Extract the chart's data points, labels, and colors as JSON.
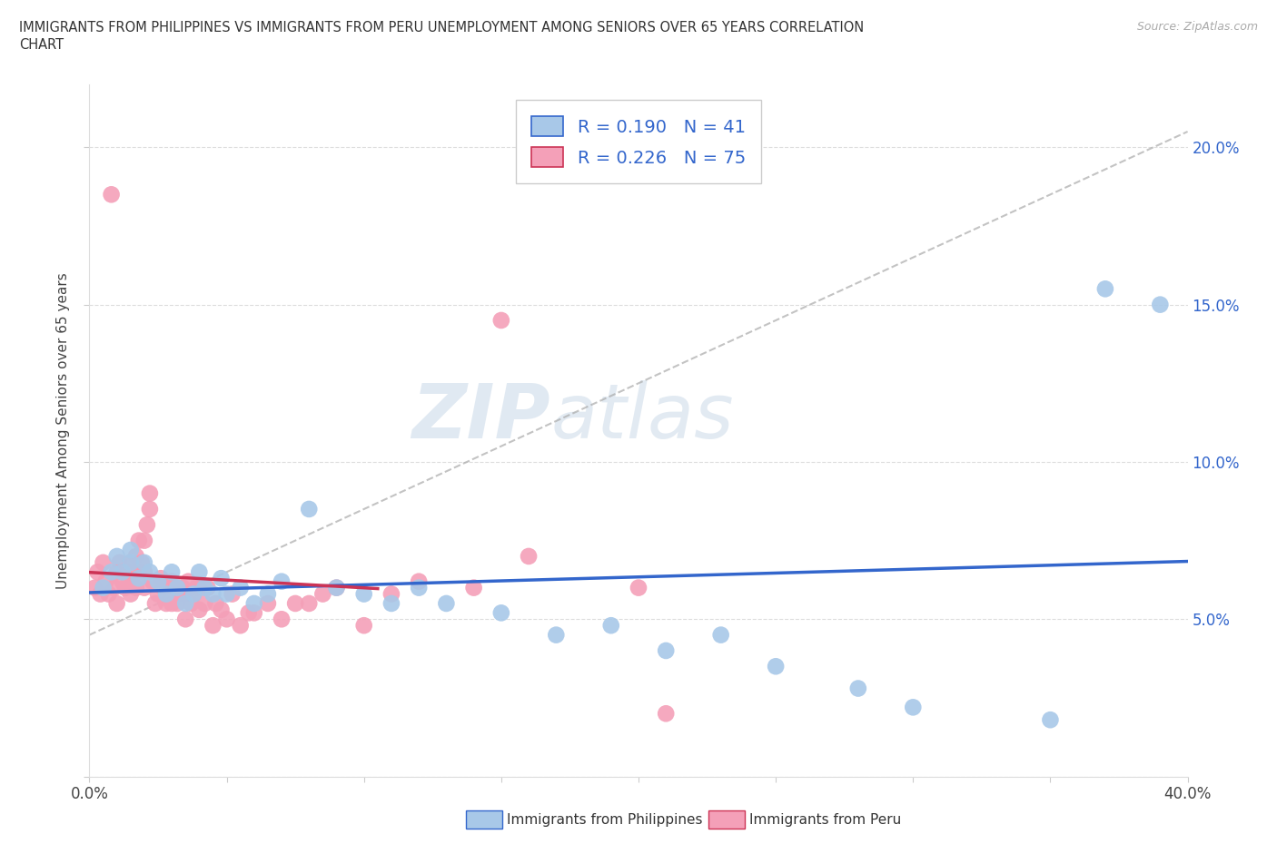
{
  "title_line1": "IMMIGRANTS FROM PHILIPPINES VS IMMIGRANTS FROM PERU UNEMPLOYMENT AMONG SENIORS OVER 65 YEARS CORRELATION",
  "title_line2": "CHART",
  "source": "Source: ZipAtlas.com",
  "ylabel": "Unemployment Among Seniors over 65 years",
  "xlim": [
    0.0,
    0.4
  ],
  "ylim": [
    0.0,
    0.22
  ],
  "yticks": [
    0.0,
    0.05,
    0.1,
    0.15,
    0.2
  ],
  "ytick_labels": [
    "",
    "5.0%",
    "10.0%",
    "15.0%",
    "20.0%"
  ],
  "xticks": [
    0.0,
    0.05,
    0.1,
    0.15,
    0.2,
    0.25,
    0.3,
    0.35,
    0.4
  ],
  "r_philippines": 0.19,
  "n_philippines": 41,
  "r_peru": 0.226,
  "n_peru": 75,
  "color_philippines": "#a8c8e8",
  "color_peru": "#f4a0b8",
  "line_color_philippines": "#3366cc",
  "line_color_peru": "#cc3355",
  "watermark_zip": "ZIP",
  "watermark_atlas": "atlas",
  "philippines_x": [
    0.005,
    0.008,
    0.01,
    0.012,
    0.015,
    0.015,
    0.018,
    0.02,
    0.022,
    0.025,
    0.028,
    0.03,
    0.032,
    0.035,
    0.038,
    0.04,
    0.042,
    0.045,
    0.048,
    0.05,
    0.055,
    0.06,
    0.065,
    0.07,
    0.08,
    0.09,
    0.1,
    0.11,
    0.12,
    0.13,
    0.15,
    0.17,
    0.19,
    0.21,
    0.23,
    0.25,
    0.28,
    0.3,
    0.35,
    0.37,
    0.39
  ],
  "philippines_y": [
    0.06,
    0.065,
    0.07,
    0.065,
    0.068,
    0.072,
    0.063,
    0.068,
    0.065,
    0.062,
    0.058,
    0.065,
    0.06,
    0.055,
    0.058,
    0.065,
    0.06,
    0.058,
    0.063,
    0.058,
    0.06,
    0.055,
    0.058,
    0.062,
    0.085,
    0.06,
    0.058,
    0.055,
    0.06,
    0.055,
    0.052,
    0.045,
    0.048,
    0.04,
    0.045,
    0.035,
    0.028,
    0.022,
    0.018,
    0.155,
    0.15
  ],
  "peru_x": [
    0.002,
    0.003,
    0.004,
    0.005,
    0.006,
    0.007,
    0.008,
    0.009,
    0.01,
    0.01,
    0.011,
    0.012,
    0.012,
    0.013,
    0.014,
    0.015,
    0.015,
    0.015,
    0.016,
    0.017,
    0.017,
    0.018,
    0.018,
    0.019,
    0.02,
    0.02,
    0.02,
    0.021,
    0.022,
    0.022,
    0.023,
    0.024,
    0.025,
    0.026,
    0.027,
    0.028,
    0.029,
    0.03,
    0.03,
    0.031,
    0.032,
    0.033,
    0.034,
    0.035,
    0.035,
    0.036,
    0.037,
    0.038,
    0.039,
    0.04,
    0.04,
    0.042,
    0.043,
    0.045,
    0.046,
    0.048,
    0.05,
    0.052,
    0.055,
    0.058,
    0.06,
    0.065,
    0.07,
    0.075,
    0.08,
    0.085,
    0.09,
    0.1,
    0.11,
    0.12,
    0.14,
    0.15,
    0.16,
    0.2,
    0.21
  ],
  "peru_y": [
    0.06,
    0.065,
    0.058,
    0.068,
    0.062,
    0.058,
    0.185,
    0.06,
    0.055,
    0.065,
    0.068,
    0.062,
    0.065,
    0.06,
    0.065,
    0.058,
    0.062,
    0.068,
    0.065,
    0.07,
    0.06,
    0.065,
    0.075,
    0.068,
    0.06,
    0.065,
    0.075,
    0.08,
    0.085,
    0.09,
    0.062,
    0.055,
    0.058,
    0.063,
    0.06,
    0.055,
    0.06,
    0.055,
    0.062,
    0.06,
    0.055,
    0.058,
    0.06,
    0.05,
    0.058,
    0.062,
    0.055,
    0.058,
    0.06,
    0.053,
    0.06,
    0.055,
    0.06,
    0.048,
    0.055,
    0.053,
    0.05,
    0.058,
    0.048,
    0.052,
    0.052,
    0.055,
    0.05,
    0.055,
    0.055,
    0.058,
    0.06,
    0.048,
    0.058,
    0.062,
    0.06,
    0.145,
    0.07,
    0.06,
    0.02
  ]
}
